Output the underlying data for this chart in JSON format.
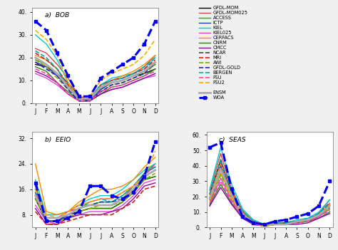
{
  "months": [
    "J",
    "F",
    "M",
    "A",
    "M",
    "J",
    "J",
    "A",
    "S",
    "O",
    "N",
    "D"
  ],
  "legend_entries": [
    {
      "label": "GFDL-MOM",
      "color": "#000000",
      "lw": 1.0,
      "ls": "-",
      "marker": null
    },
    {
      "label": "GFDL-MOM025",
      "color": "#dd4444",
      "lw": 1.0,
      "ls": "-",
      "marker": null
    },
    {
      "label": "ACCESS",
      "color": "#00bb00",
      "lw": 1.0,
      "ls": "-",
      "marker": null
    },
    {
      "label": "ICTP",
      "color": "#3333bb",
      "lw": 1.0,
      "ls": "-",
      "marker": null
    },
    {
      "label": "KIEL",
      "color": "#00cccc",
      "lw": 1.0,
      "ls": "-",
      "marker": null
    },
    {
      "label": "KIEL025",
      "color": "#dd44dd",
      "lw": 1.0,
      "ls": "-",
      "marker": null
    },
    {
      "label": "CERFACS",
      "color": "#ff8800",
      "lw": 1.0,
      "ls": "-",
      "marker": null
    },
    {
      "label": "CNRM",
      "color": "#228800",
      "lw": 1.0,
      "ls": "-",
      "marker": null
    },
    {
      "label": "CMCC",
      "color": "#9900aa",
      "lw": 1.0,
      "ls": "-",
      "marker": null
    },
    {
      "label": "NCAR",
      "color": "#444444",
      "lw": 1.2,
      "ls": "--",
      "marker": null
    },
    {
      "label": "MRI",
      "color": "#cc2222",
      "lw": 1.2,
      "ls": "--",
      "marker": null
    },
    {
      "label": "AWI",
      "color": "#88aa00",
      "lw": 1.2,
      "ls": "--",
      "marker": null
    },
    {
      "label": "GFDL-GOLD",
      "color": "#2222bb",
      "lw": 1.2,
      "ls": "--",
      "marker": null
    },
    {
      "label": "BERGEN",
      "color": "#00aaaa",
      "lw": 1.2,
      "ls": "--",
      "marker": null
    },
    {
      "label": "FSU",
      "color": "#ff44aa",
      "lw": 1.2,
      "ls": "--",
      "marker": null
    },
    {
      "label": "FSU2",
      "color": "#ffaa00",
      "lw": 1.2,
      "ls": "--",
      "marker": null
    },
    {
      "label": "ENSM",
      "color": "#aaaaaa",
      "lw": 2.0,
      "ls": "-",
      "marker": null
    },
    {
      "label": "WOA",
      "color": "#0000ee",
      "lw": 2.2,
      "ls": "--",
      "marker": "s"
    }
  ],
  "BOB": {
    "GFDL-MOM": [
      17,
      16,
      13,
      9,
      3,
      1,
      6,
      9,
      10,
      12,
      13,
      15
    ],
    "GFDL-MOM025": [
      24,
      22,
      17,
      11,
      3,
      2,
      8,
      10,
      11,
      13,
      16,
      21
    ],
    "ACCESS": [
      19,
      17,
      13,
      7,
      2,
      1,
      6,
      9,
      10,
      12,
      14,
      17
    ],
    "ICTP": [
      18,
      16,
      12,
      7,
      2,
      1,
      6,
      9,
      10,
      12,
      14,
      17
    ],
    "KIEL": [
      30,
      26,
      19,
      9,
      2,
      2,
      8,
      11,
      12,
      13,
      15,
      20
    ],
    "KIEL025": [
      13,
      11,
      8,
      4,
      1,
      1,
      4,
      6,
      7,
      9,
      11,
      12
    ],
    "CERFACS": [
      21,
      19,
      15,
      8,
      2,
      2,
      7,
      10,
      12,
      14,
      17,
      21
    ],
    "CNRM": [
      16,
      14,
      9,
      5,
      1,
      1,
      4,
      7,
      8,
      10,
      12,
      15
    ],
    "CMCC": [
      14,
      12,
      9,
      4,
      1,
      1,
      4,
      6,
      7,
      9,
      11,
      13
    ],
    "NCAR": [
      20,
      17,
      13,
      7,
      2,
      2,
      7,
      9,
      10,
      12,
      14,
      18
    ],
    "MRI": [
      22,
      19,
      15,
      8,
      2,
      2,
      8,
      10,
      11,
      13,
      15,
      19
    ],
    "AWI": [
      19,
      16,
      11,
      6,
      1,
      1,
      5,
      8,
      9,
      11,
      13,
      17
    ],
    "GFDL-GOLD": [
      18,
      15,
      12,
      6,
      1,
      1,
      5,
      8,
      9,
      11,
      13,
      18
    ],
    "BERGEN": [
      23,
      20,
      15,
      7,
      2,
      2,
      8,
      10,
      11,
      13,
      16,
      20
    ],
    "FSU": [
      15,
      13,
      9,
      4,
      1,
      1,
      5,
      7,
      8,
      10,
      12,
      14
    ],
    "FSU2": [
      32,
      28,
      21,
      9,
      2,
      3,
      10,
      13,
      15,
      17,
      21,
      28
    ],
    "ENSM": [
      20,
      17,
      13,
      7,
      2,
      2,
      7,
      9,
      10,
      12,
      14,
      18
    ],
    "WOA": [
      36,
      32,
      22,
      12,
      3,
      3,
      11,
      14,
      17,
      20,
      26,
      36
    ]
  },
  "EEIO": {
    "GFDL-MOM": [
      13,
      6,
      6,
      8,
      9,
      10,
      10,
      10,
      12,
      16,
      19,
      20
    ],
    "GFDL-MOM025": [
      15,
      7,
      7,
      9,
      10,
      11,
      11,
      11,
      13,
      17,
      21,
      23
    ],
    "ACCESS": [
      17,
      8,
      8,
      9,
      11,
      11,
      12,
      12,
      14,
      17,
      21,
      24
    ],
    "ICTP": [
      16,
      7,
      7,
      8,
      10,
      11,
      11,
      11,
      13,
      16,
      21,
      23
    ],
    "KIEL": [
      19,
      8,
      8,
      9,
      11,
      13,
      14,
      14,
      16,
      19,
      22,
      24
    ],
    "KIEL025": [
      11,
      6,
      5,
      7,
      8,
      9,
      9,
      9,
      11,
      14,
      18,
      19
    ],
    "CERFACS": [
      24,
      9,
      8,
      9,
      12,
      14,
      16,
      16,
      17,
      19,
      23,
      26
    ],
    "CNRM": [
      14,
      6,
      6,
      7,
      9,
      10,
      10,
      10,
      12,
      15,
      19,
      20
    ],
    "CMCC": [
      10,
      5,
      5,
      7,
      8,
      8,
      8,
      9,
      10,
      13,
      17,
      18
    ],
    "NCAR": [
      14,
      6,
      6,
      8,
      10,
      11,
      11,
      11,
      13,
      16,
      20,
      22
    ],
    "MRI": [
      9,
      5,
      5,
      6,
      7,
      8,
      8,
      8,
      10,
      12,
      16,
      17
    ],
    "AWI": [
      13,
      6,
      6,
      7,
      9,
      10,
      11,
      11,
      12,
      15,
      19,
      21
    ],
    "GFDL-GOLD": [
      15,
      6,
      6,
      8,
      10,
      11,
      12,
      12,
      13,
      16,
      20,
      22
    ],
    "BERGEN": [
      15,
      7,
      7,
      8,
      10,
      12,
      13,
      12,
      14,
      17,
      21,
      23
    ],
    "FSU": [
      16,
      7,
      7,
      9,
      11,
      12,
      13,
      13,
      15,
      17,
      20,
      24
    ],
    "FSU2": [
      16,
      8,
      7,
      9,
      11,
      12,
      13,
      13,
      15,
      17,
      20,
      28
    ],
    "ENSM": [
      14,
      7,
      7,
      8,
      10,
      11,
      11,
      11,
      13,
      16,
      20,
      22
    ],
    "WOA": [
      18,
      6,
      6,
      7,
      9,
      17,
      17,
      14,
      13,
      15,
      20,
      31
    ]
  },
  "SEAS": {
    "GFDL-MOM": [
      22,
      44,
      22,
      10,
      4,
      2,
      3,
      3,
      4,
      5,
      8,
      15
    ],
    "GFDL-MOM025": [
      24,
      48,
      25,
      11,
      4,
      2,
      3,
      3,
      4,
      5,
      9,
      18
    ],
    "ACCESS": [
      18,
      35,
      20,
      8,
      3,
      1,
      2,
      2,
      3,
      4,
      7,
      12
    ],
    "ICTP": [
      14,
      40,
      21,
      9,
      4,
      2,
      2,
      3,
      4,
      5,
      8,
      14
    ],
    "KIEL": [
      25,
      52,
      28,
      12,
      5,
      2,
      3,
      3,
      5,
      6,
      10,
      18
    ],
    "KIEL025": [
      16,
      32,
      18,
      7,
      3,
      1,
      2,
      2,
      3,
      4,
      7,
      12
    ],
    "CERFACS": [
      20,
      42,
      24,
      10,
      4,
      2,
      3,
      3,
      4,
      5,
      8,
      15
    ],
    "CNRM": [
      15,
      28,
      16,
      6,
      2,
      1,
      2,
      2,
      3,
      4,
      6,
      10
    ],
    "CMCC": [
      14,
      26,
      15,
      6,
      2,
      1,
      2,
      2,
      2,
      3,
      6,
      9
    ],
    "NCAR": [
      18,
      38,
      20,
      8,
      3,
      1,
      2,
      3,
      4,
      5,
      8,
      13
    ],
    "MRI": [
      21,
      43,
      23,
      10,
      4,
      2,
      3,
      3,
      4,
      5,
      9,
      16
    ],
    "AWI": [
      17,
      34,
      19,
      8,
      3,
      1,
      2,
      2,
      4,
      5,
      8,
      12
    ],
    "GFDL-GOLD": [
      19,
      38,
      21,
      9,
      3,
      2,
      2,
      3,
      4,
      5,
      8,
      14
    ],
    "BERGEN": [
      22,
      44,
      24,
      10,
      4,
      2,
      3,
      3,
      4,
      6,
      9,
      16
    ],
    "FSU": [
      16,
      30,
      17,
      7,
      2,
      1,
      2,
      2,
      3,
      4,
      7,
      11
    ],
    "FSU2": [
      18,
      36,
      19,
      8,
      3,
      1,
      2,
      2,
      4,
      5,
      8,
      14
    ],
    "ENSM": [
      19,
      38,
      21,
      9,
      3,
      2,
      2,
      2,
      4,
      5,
      8,
      14
    ],
    "WOA": [
      52,
      55,
      25,
      7,
      3,
      2,
      4,
      5,
      7,
      9,
      14,
      30
    ]
  },
  "BOB_ylim": [
    0,
    42
  ],
  "BOB_yticks": [
    0,
    10,
    20,
    30,
    40
  ],
  "EEIO_ylim": [
    4,
    34
  ],
  "EEIO_yticks": [
    8.0,
    16.0,
    24.0,
    32.0
  ],
  "SEAS_ylim": [
    0,
    62
  ],
  "SEAS_yticks": [
    0,
    10,
    20,
    30,
    40,
    50,
    60
  ],
  "bg_color": "#f0f0f0",
  "panel_bg": "#ffffff"
}
